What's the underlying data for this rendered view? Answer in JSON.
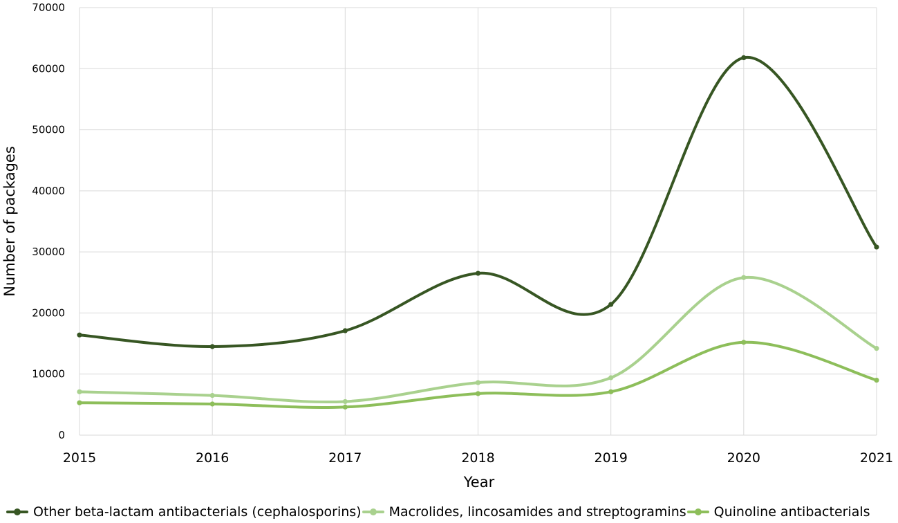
{
  "chart_data": {
    "type": "line",
    "xlabel": "Year",
    "ylabel": "Number of packages",
    "categories": [
      "2015",
      "2016",
      "2017",
      "2018",
      "2019",
      "2020",
      "2021"
    ],
    "ylim": [
      0,
      70000
    ],
    "yticks": [
      "0",
      "10000",
      "20000",
      "30000",
      "40000",
      "50000",
      "60000",
      "70000"
    ],
    "grid": true,
    "smooth": true,
    "legend_position": "bottom",
    "series": [
      {
        "name": "Other beta-lactam antibacterials (cephalosporins)",
        "color": "#375623",
        "values": [
          16400,
          14500,
          17100,
          26500,
          21400,
          61800,
          30800
        ]
      },
      {
        "name": "Macrolides, lincosamides and streptogramins",
        "color": "#A9D18E",
        "values": [
          7100,
          6500,
          5500,
          8600,
          9400,
          25800,
          14200
        ]
      },
      {
        "name": "Quinoline antibacterials",
        "color": "#8DBE5A",
        "values": [
          5300,
          5100,
          4600,
          6800,
          7100,
          15200,
          9000
        ]
      }
    ]
  }
}
